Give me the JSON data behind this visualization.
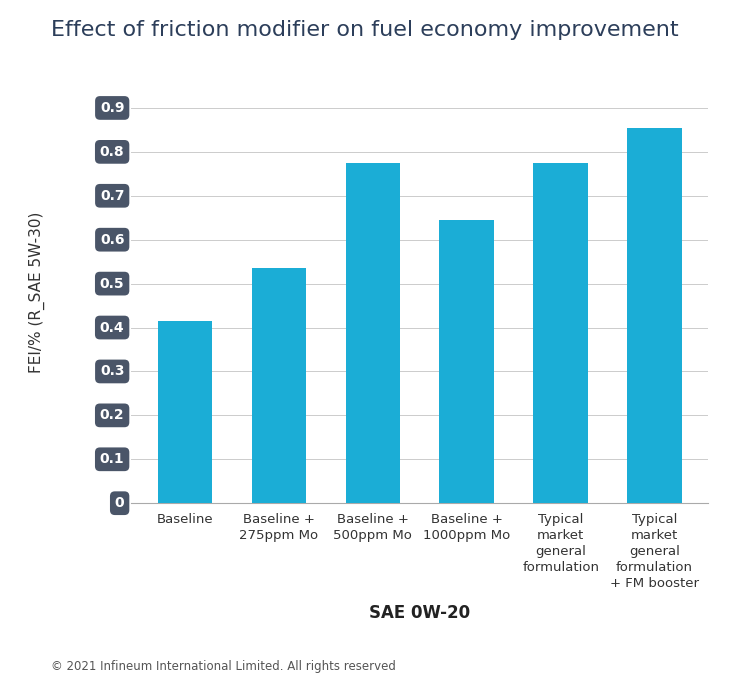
{
  "title": "Effect of friction modifier on fuel economy improvement",
  "categories": [
    "Baseline",
    "Baseline +\n275ppm Mo",
    "Baseline +\n500ppm Mo",
    "Baseline +\n1000ppm Mo",
    "Typical\nmarket\ngeneral\nformulation",
    "Typical\nmarket\ngeneral\nformulation\n+ FM booster"
  ],
  "values": [
    0.415,
    0.535,
    0.775,
    0.645,
    0.775,
    0.855
  ],
  "bar_color": "#1BADD6",
  "ylabel": "FEI/% (R_SAE 5W-30)",
  "xlabel": "SAE 0W-20",
  "yticks": [
    0,
    0.1,
    0.2,
    0.3,
    0.4,
    0.5,
    0.6,
    0.7,
    0.8,
    0.9
  ],
  "ytick_labels": [
    "0",
    "0.1",
    "0.2",
    "0.3",
    "0.4",
    "0.5",
    "0.6",
    "0.7",
    "0.8",
    "0.9"
  ],
  "ylim": [
    0,
    0.96
  ],
  "tick_label_bg": "#4A5568",
  "tick_label_fg": "#FFFFFF",
  "background_color": "#FFFFFF",
  "grid_color": "#CCCCCC",
  "footer": "© 2021 Infineum International Limited. All rights reserved",
  "title_fontsize": 16,
  "ylabel_fontsize": 11,
  "xlabel_fontsize": 12,
  "xtick_fontsize": 9.5,
  "ytick_fontsize": 10,
  "footer_fontsize": 8.5,
  "title_color": "#2C3E5A",
  "xlabel_color": "#222222",
  "ylabel_color": "#333333",
  "xtick_color": "#333333"
}
